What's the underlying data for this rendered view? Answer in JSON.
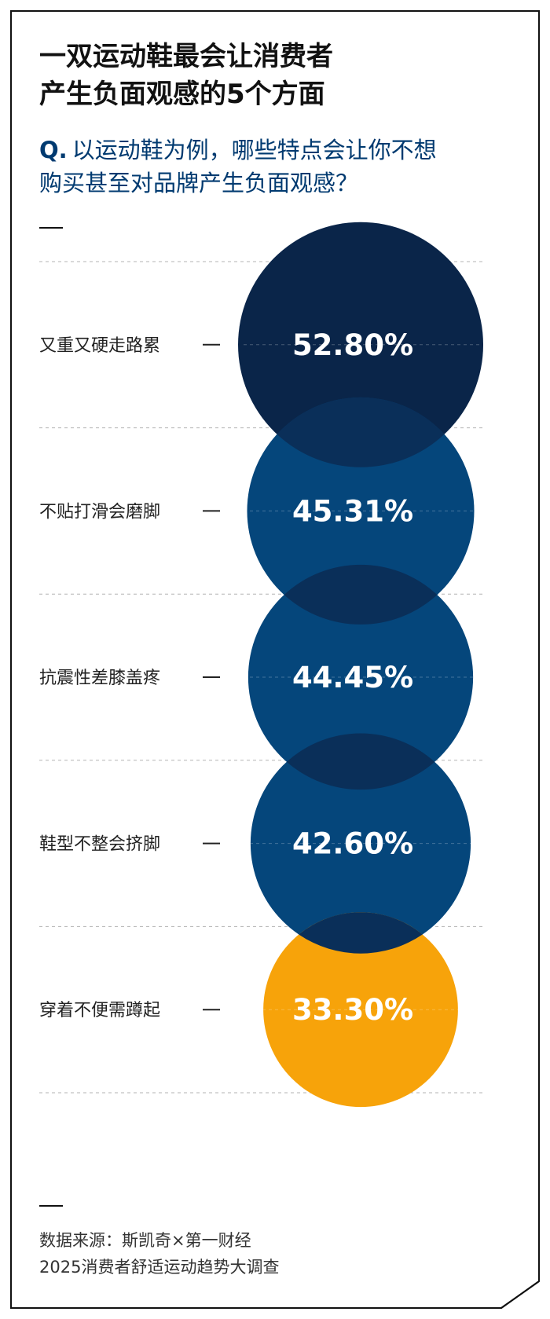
{
  "title_line1": "一双运动鞋最会让消费者",
  "title_line2": "产生负面观感的5个方面",
  "question_marker": "Q.",
  "question_line1": "以运动鞋为例，哪些特点会让你不想",
  "question_line2": "购买甚至对品牌产生负面观感？",
  "source_line1": "数据来源：斯凯奇×第一财经",
  "source_line2": "2025消费者舒适运动趋势大调查",
  "chart_data": {
    "type": "bubble",
    "title": "一双运动鞋最会让消费者产生负面观感的5个方面",
    "unit": "%",
    "categories": [
      "又重又硬走路累",
      "不贴打滑会磨脚",
      "抗震性差膝盖疼",
      "鞋型不整会挤脚",
      "穿着不便需蹲起"
    ],
    "values": [
      52.8,
      45.31,
      44.45,
      42.6,
      33.3
    ],
    "value_labels": [
      "52.80%",
      "45.31%",
      "44.45%",
      "42.60%",
      "33.30%"
    ],
    "colors": [
      "#0a2549",
      "#05467b",
      "#05467b",
      "#05467b",
      "#f7a30a"
    ],
    "overlap_color": "#0a2f59"
  }
}
